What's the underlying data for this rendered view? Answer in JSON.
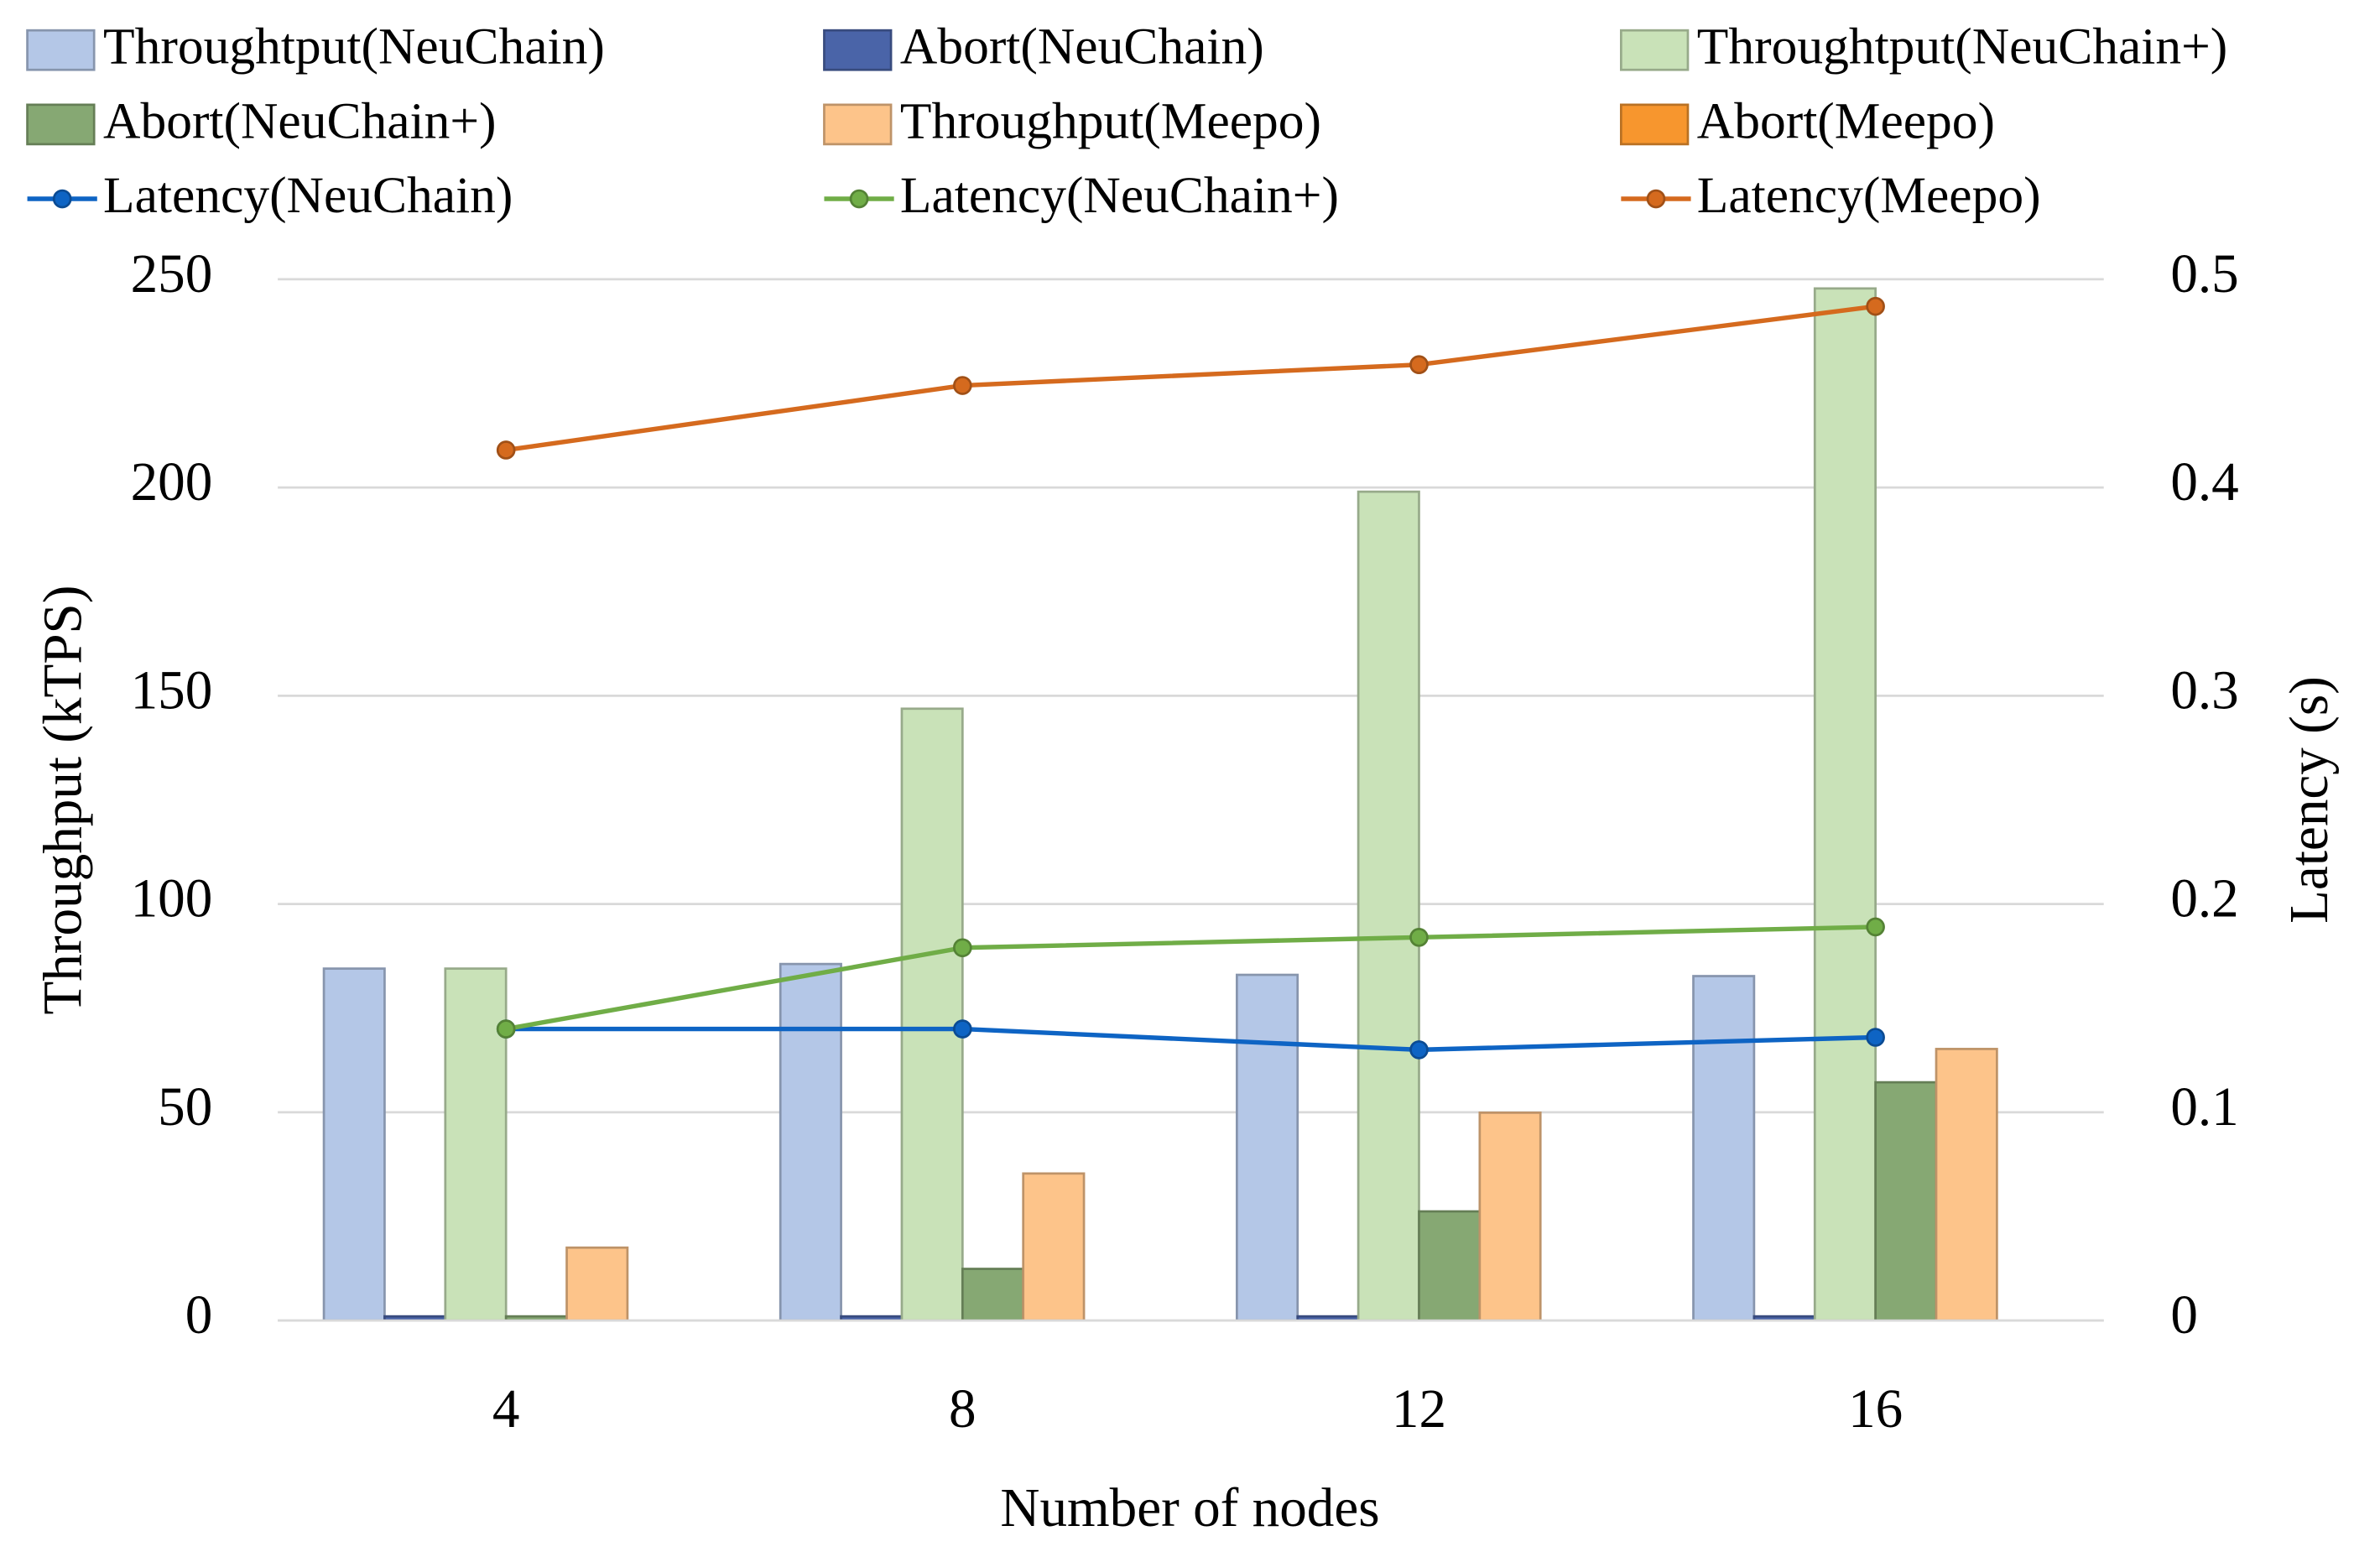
{
  "chart_data": {
    "type": "bar",
    "x_label": "Number of nodes",
    "y_label": "Throughput (kTPS)",
    "y2_label": "Latency (s)",
    "categories": [
      "4",
      "8",
      "12",
      "16"
    ],
    "ylim": [
      0,
      250
    ],
    "yticks": [
      0,
      50,
      100,
      150,
      200,
      250
    ],
    "y2lim": [
      0,
      0.5
    ],
    "y2ticks": [
      0,
      0.1,
      0.2,
      0.3,
      0.4,
      0.5
    ],
    "grid": true,
    "legend": "top",
    "series": [
      {
        "name": "Throughtput(NeuChain)",
        "type": "bar",
        "color": "#b4c7e7",
        "values": [
          84.5,
          85.6,
          83,
          82.7
        ]
      },
      {
        "name": "Abort(NeuChain)",
        "type": "bar",
        "color": "#4a64a8",
        "values": [
          1,
          1,
          1,
          1
        ]
      },
      {
        "name": "Throughtput(NeuChain+)",
        "type": "bar",
        "color": "#c9e2b8",
        "values": [
          84.5,
          146.9,
          199,
          247.8
        ]
      },
      {
        "name": "Abort(NeuChain+)",
        "type": "bar",
        "color": "#86a873",
        "values": [
          1,
          12.4,
          26.2,
          57.2
        ]
      },
      {
        "name": "Throughput(Meepo)",
        "type": "bar",
        "color": "#fdc48a",
        "values": [
          17.5,
          35.3,
          49.9,
          65.2
        ]
      },
      {
        "name": "Abort(Meepo)",
        "type": "bar",
        "color": "#f7962e",
        "values": [
          0,
          0,
          0,
          0
        ]
      },
      {
        "name": "Latency(NeuChain)",
        "type": "line",
        "axis": "y2",
        "color": "#0e64c4",
        "values": [
          0.14,
          0.14,
          0.13,
          0.136
        ]
      },
      {
        "name": "Latency(NeuChain+)",
        "type": "line",
        "axis": "y2",
        "color": "#70ad47",
        "values": [
          0.14,
          0.179,
          0.184,
          0.189
        ]
      },
      {
        "name": "Latency(Meepo)",
        "type": "line",
        "axis": "y2",
        "color": "#d56a1e",
        "values": [
          0.418,
          0.449,
          0.459,
          0.487
        ]
      }
    ]
  }
}
